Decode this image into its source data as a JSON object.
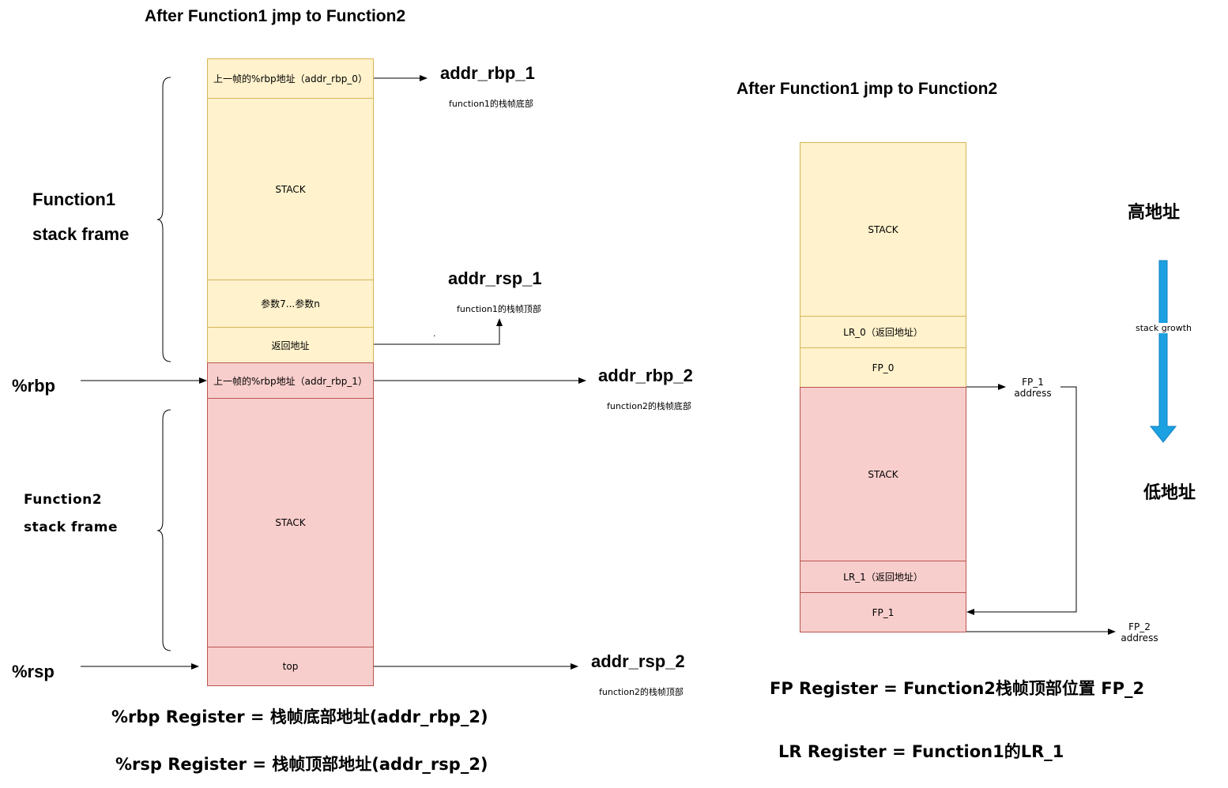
{
  "left": {
    "title": "After Function1 jmp to Function2",
    "function1_label": [
      "Function1",
      "stack frame"
    ],
    "function2_label": [
      "Function2",
      "stack frame"
    ],
    "cells": {
      "prev_rbp_0": "上一帧的%rbp地址（addr_rbp_0）",
      "stack1": "STACK",
      "params": "参数7...参数n",
      "ret_addr": "返回地址",
      "prev_rbp_1": "上一帧的%rbp地址（addr_rbp_1）",
      "stack2": "STACK",
      "top": "top"
    },
    "pointers": {
      "addr_rbp_1": "addr_rbp_1",
      "addr_rbp_1_note": "function1的栈帧底部",
      "addr_rsp_1": "addr_rsp_1",
      "addr_rsp_1_note": "function1的栈帧顶部",
      "addr_rbp_2": "addr_rbp_2",
      "addr_rbp_2_note": "function2的栈帧底部",
      "addr_rsp_2": "addr_rsp_2",
      "addr_rsp_2_note": "function2的栈帧顶部",
      "dot": "."
    },
    "registers": {
      "rbp": "%rbp",
      "rsp": "%rsp",
      "rbp_eq": "%rbp Register = 栈帧底部地址(addr_rbp_2)",
      "rsp_eq": "%rsp Register = 栈帧顶部地址(addr_rsp_2)"
    }
  },
  "right": {
    "title": "After Function1 jmp to Function2",
    "cells": {
      "stack1": "STACK",
      "lr0": "LR_0（返回地址）",
      "fp0": "FP_0",
      "stack2": "STACK",
      "lr1": "LR_1（返回地址）",
      "fp1": "FP_1"
    },
    "fp1_address": [
      "FP_1",
      "address"
    ],
    "fp2_address": [
      "FP_2",
      "address"
    ],
    "high_addr": "高地址",
    "low_addr": "低地址",
    "growth_label": "stack growth",
    "fp_eq": "FP Register = Function2栈帧顶部位置 FP_2",
    "lr_eq": "LR Register = Function1的LR_1"
  },
  "colors": {
    "frame1_fill": "#fff2cc",
    "frame1_stroke": "#d6b656",
    "frame2_fill": "#f8cecc",
    "frame2_stroke": "#b85450",
    "growth_arrow": "#1ba1e2"
  }
}
